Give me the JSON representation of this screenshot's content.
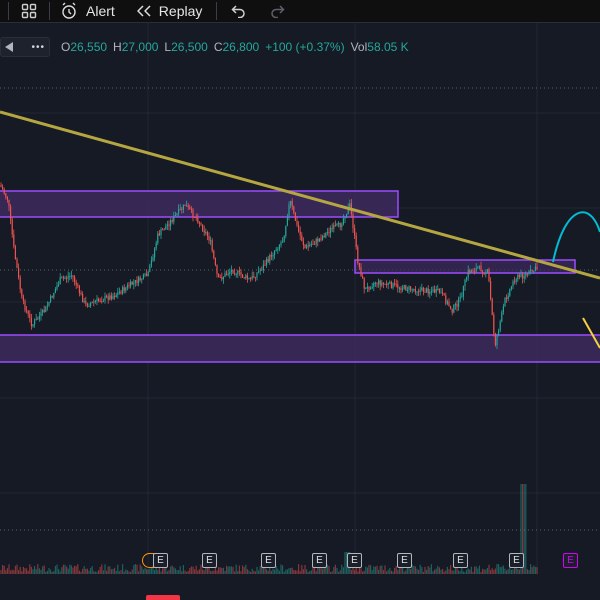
{
  "toolbar": {
    "alert_label": "Alert",
    "replay_label": "Replay"
  },
  "legend": {
    "more": "•••",
    "open_key": "O",
    "open_val": "26,550",
    "high_key": "H",
    "high_val": "27,000",
    "low_key": "L",
    "low_val": "26,500",
    "close_key": "C",
    "close_val": "26,800",
    "change": "+100 (+0.37%)",
    "vol_key": "Vol",
    "vol_val": "58.05 K"
  },
  "earnings_marker": "E",
  "colors": {
    "background": "#161a25",
    "up": "#26a69a",
    "down": "#ef5350",
    "zone_fill": "#3d2a5e",
    "zone_border": "#9c4dff",
    "trendline": "#b5a642",
    "projection": "#00bcd4",
    "projection_down": "#f5d142",
    "earnings_future": "#d500f9"
  }
}
